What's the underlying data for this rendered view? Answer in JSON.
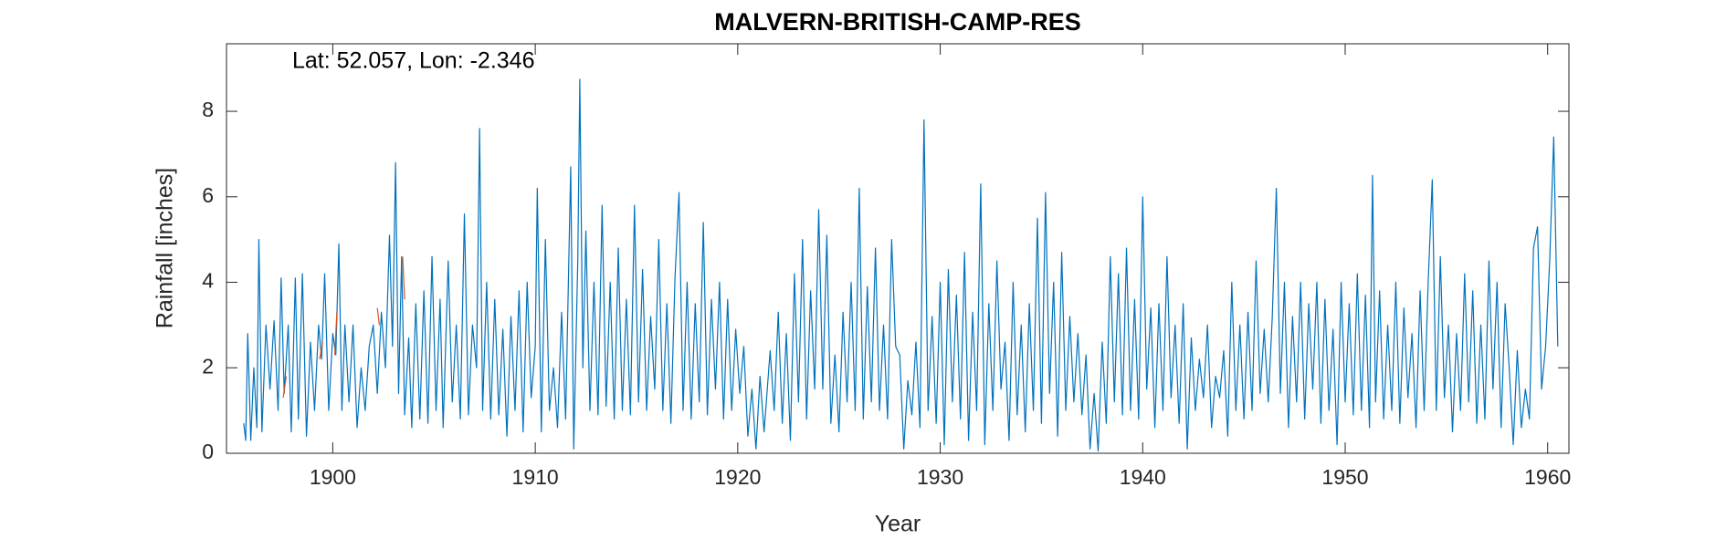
{
  "chart_data": {
    "type": "line",
    "title": "MALVERN-BRITISH-CAMP-RES",
    "annotation": "Lat: 52.057, Lon: -2.346",
    "x_label": "Year",
    "y_label": "Rainfall [inches]",
    "xlim": [
      1894.75,
      1961.05
    ],
    "ylim": [
      0,
      9.58
    ],
    "xticks": [
      1900,
      1910,
      1920,
      1930,
      1940,
      1950,
      1960
    ],
    "yticks": [
      0,
      2,
      4,
      6,
      8
    ],
    "series": [
      {
        "color": "#0072BD",
        "x": [
          1895.6,
          1895.7,
          1895.8,
          1895.95,
          1896.1,
          1896.25,
          1896.35,
          1896.5,
          1896.7,
          1896.9,
          1897.1,
          1897.3,
          1897.45,
          1897.6,
          1897.8,
          1897.95,
          1898.15,
          1898.3,
          1898.5,
          1898.7,
          1898.9,
          1899.1,
          1899.3,
          1899.45,
          1899.6,
          1899.8,
          1900.0,
          1900.15,
          1900.3,
          1900.45,
          1900.6,
          1900.8,
          1901.0,
          1901.2,
          1901.4,
          1901.6,
          1901.8,
          1902.0,
          1902.2,
          1902.4,
          1902.6,
          1902.8,
          1902.95,
          1903.1,
          1903.25,
          1903.4,
          1903.55,
          1903.75,
          1903.9,
          1904.1,
          1904.3,
          1904.5,
          1904.7,
          1904.9,
          1905.1,
          1905.3,
          1905.45,
          1905.7,
          1905.9,
          1906.1,
          1906.3,
          1906.5,
          1906.7,
          1906.9,
          1907.1,
          1907.25,
          1907.4,
          1907.6,
          1907.8,
          1908.0,
          1908.2,
          1908.4,
          1908.6,
          1908.8,
          1909.0,
          1909.2,
          1909.4,
          1909.6,
          1909.8,
          1910.0,
          1910.1,
          1910.3,
          1910.5,
          1910.7,
          1910.9,
          1911.1,
          1911.3,
          1911.5,
          1911.75,
          1911.9,
          1912.1,
          1912.2,
          1912.35,
          1912.5,
          1912.7,
          1912.9,
          1913.1,
          1913.3,
          1913.5,
          1913.7,
          1913.9,
          1914.1,
          1914.3,
          1914.5,
          1914.7,
          1914.9,
          1915.1,
          1915.3,
          1915.5,
          1915.7,
          1915.9,
          1916.1,
          1916.3,
          1916.5,
          1916.7,
          1916.9,
          1917.1,
          1917.3,
          1917.5,
          1917.7,
          1917.9,
          1918.1,
          1918.3,
          1918.5,
          1918.7,
          1918.9,
          1919.1,
          1919.3,
          1919.5,
          1919.7,
          1919.9,
          1920.1,
          1920.3,
          1920.5,
          1920.7,
          1920.9,
          1921.1,
          1921.3,
          1921.6,
          1921.8,
          1922.0,
          1922.2,
          1922.4,
          1922.6,
          1922.8,
          1923.0,
          1923.2,
          1923.4,
          1923.6,
          1923.8,
          1924.0,
          1924.2,
          1924.4,
          1924.6,
          1924.8,
          1925.0,
          1925.2,
          1925.4,
          1925.6,
          1925.8,
          1926.0,
          1926.2,
          1926.4,
          1926.6,
          1926.8,
          1927.0,
          1927.2,
          1927.4,
          1927.6,
          1927.8,
          1928.0,
          1928.2,
          1928.4,
          1928.6,
          1928.8,
          1929.0,
          1929.2,
          1929.4,
          1929.6,
          1929.8,
          1930.0,
          1930.2,
          1930.4,
          1930.6,
          1930.8,
          1931.0,
          1931.2,
          1931.4,
          1931.6,
          1931.8,
          1932.0,
          1932.2,
          1932.4,
          1932.6,
          1932.8,
          1933.0,
          1933.2,
          1933.4,
          1933.6,
          1933.8,
          1934.0,
          1934.2,
          1934.4,
          1934.6,
          1934.8,
          1935.0,
          1935.2,
          1935.4,
          1935.6,
          1935.8,
          1936.0,
          1936.2,
          1936.4,
          1936.6,
          1936.8,
          1937.0,
          1937.2,
          1937.4,
          1937.6,
          1937.8,
          1938.0,
          1938.2,
          1938.4,
          1938.6,
          1938.8,
          1939.0,
          1939.2,
          1939.4,
          1939.6,
          1939.8,
          1940.0,
          1940.2,
          1940.4,
          1940.6,
          1940.8,
          1941.0,
          1941.2,
          1941.4,
          1941.6,
          1941.8,
          1942.0,
          1942.2,
          1942.4,
          1942.6,
          1942.8,
          1943.0,
          1943.2,
          1943.4,
          1943.6,
          1943.8,
          1944.0,
          1944.2,
          1944.4,
          1944.6,
          1944.8,
          1945.0,
          1945.2,
          1945.4,
          1945.6,
          1945.8,
          1946.0,
          1946.2,
          1946.4,
          1946.6,
          1946.8,
          1947.0,
          1947.2,
          1947.4,
          1947.6,
          1947.8,
          1948.0,
          1948.2,
          1948.4,
          1948.6,
          1948.8,
          1949.0,
          1949.2,
          1949.4,
          1949.6,
          1949.8,
          1950.0,
          1950.2,
          1950.4,
          1950.6,
          1950.8,
          1951.0,
          1951.2,
          1951.35,
          1951.5,
          1951.7,
          1951.9,
          1952.1,
          1952.3,
          1952.5,
          1952.7,
          1952.9,
          1953.1,
          1953.3,
          1953.5,
          1953.7,
          1953.9,
          1954.1,
          1954.3,
          1954.5,
          1954.7,
          1954.9,
          1955.1,
          1955.3,
          1955.5,
          1955.7,
          1955.9,
          1956.1,
          1956.3,
          1956.5,
          1956.7,
          1956.9,
          1957.1,
          1957.3,
          1957.5,
          1957.7,
          1957.9,
          1958.1,
          1958.3,
          1958.5,
          1958.7,
          1958.9,
          1959.1,
          1959.3,
          1959.5,
          1959.7,
          1959.9,
          1960.1,
          1960.3,
          1960.5
        ],
        "values": [
          0.7,
          0.3,
          2.8,
          0.3,
          2.0,
          0.6,
          5.0,
          0.5,
          3.0,
          1.5,
          3.1,
          1.0,
          4.1,
          1.4,
          3.0,
          0.5,
          4.1,
          0.8,
          4.2,
          0.4,
          2.6,
          1.0,
          3.0,
          2.2,
          4.2,
          1.0,
          2.8,
          2.3,
          4.9,
          1.0,
          3.0,
          1.2,
          3.0,
          0.6,
          2.0,
          1.0,
          2.5,
          3.0,
          1.4,
          3.3,
          2.0,
          5.1,
          2.5,
          6.8,
          1.4,
          4.6,
          0.9,
          2.7,
          0.6,
          3.5,
          0.8,
          3.8,
          0.7,
          4.6,
          1.0,
          3.6,
          0.6,
          4.5,
          1.2,
          3.0,
          0.8,
          5.6,
          0.9,
          3.0,
          2.0,
          7.6,
          1.0,
          4.0,
          0.8,
          3.6,
          0.9,
          2.9,
          0.4,
          3.2,
          1.0,
          3.8,
          0.5,
          4.0,
          1.3,
          2.5,
          6.2,
          0.5,
          5.0,
          1.0,
          2.0,
          0.6,
          3.3,
          0.8,
          6.7,
          0.1,
          4.5,
          8.75,
          2.0,
          5.2,
          1.0,
          4.0,
          0.9,
          5.8,
          1.1,
          4.0,
          0.8,
          4.8,
          1.0,
          3.6,
          0.9,
          5.8,
          1.2,
          4.3,
          1.0,
          3.2,
          1.5,
          5.0,
          1.0,
          3.5,
          0.7,
          4.1,
          6.1,
          1.0,
          4.0,
          0.8,
          3.5,
          1.2,
          5.4,
          0.9,
          3.6,
          1.5,
          4.0,
          0.8,
          3.6,
          1.0,
          2.9,
          1.4,
          2.5,
          0.4,
          1.5,
          0.1,
          1.8,
          0.5,
          2.4,
          1.0,
          3.3,
          0.7,
          2.8,
          0.3,
          4.2,
          1.2,
          5.0,
          0.8,
          3.8,
          1.5,
          5.7,
          1.5,
          5.1,
          0.7,
          2.3,
          0.5,
          3.3,
          1.2,
          4.0,
          1.0,
          6.2,
          0.8,
          3.9,
          1.2,
          4.8,
          1.0,
          3.0,
          0.8,
          5.0,
          2.5,
          2.3,
          0.1,
          1.7,
          0.9,
          2.6,
          0.6,
          7.8,
          1.0,
          3.2,
          0.7,
          4.0,
          0.2,
          4.3,
          1.2,
          3.7,
          0.8,
          4.7,
          0.3,
          3.3,
          1.0,
          6.3,
          0.2,
          3.5,
          1.0,
          4.5,
          1.5,
          2.6,
          0.3,
          4.0,
          0.9,
          3.0,
          0.5,
          3.5,
          1.0,
          5.5,
          0.7,
          6.1,
          1.4,
          4.0,
          0.4,
          4.7,
          1.0,
          3.2,
          1.2,
          2.8,
          0.9,
          2.3,
          0.1,
          1.4,
          0.05,
          2.6,
          0.7,
          4.6,
          1.2,
          4.2,
          0.9,
          4.8,
          1.0,
          3.6,
          0.8,
          6.0,
          1.5,
          3.4,
          0.6,
          3.5,
          1.0,
          4.6,
          1.3,
          3.0,
          0.7,
          3.5,
          0.1,
          2.7,
          1.0,
          2.2,
          1.3,
          3.0,
          0.6,
          1.8,
          1.3,
          2.4,
          0.4,
          4.0,
          1.0,
          3.0,
          0.8,
          3.3,
          1.0,
          4.5,
          1.4,
          2.9,
          1.2,
          3.2,
          6.2,
          1.4,
          4.0,
          0.6,
          3.2,
          1.2,
          4.0,
          0.8,
          3.5,
          1.5,
          4.0,
          0.7,
          3.6,
          1.0,
          2.9,
          0.2,
          4.0,
          1.2,
          3.5,
          0.9,
          4.2,
          1.0,
          3.7,
          0.6,
          6.5,
          1.2,
          3.8,
          0.8,
          3.0,
          1.0,
          4.0,
          0.7,
          3.4,
          1.3,
          2.8,
          0.6,
          3.8,
          1.0,
          4.0,
          6.4,
          1.0,
          4.6,
          1.3,
          3.0,
          0.5,
          2.8,
          1.0,
          4.2,
          1.2,
          3.8,
          0.7,
          3.0,
          0.8,
          4.5,
          1.5,
          4.0,
          0.6,
          3.5,
          2.0,
          0.2,
          2.4,
          0.6,
          1.5,
          0.8,
          4.8,
          5.3,
          1.5,
          2.5,
          4.5,
          7.4,
          2.5
        ]
      },
      {
        "color": "#D95319",
        "x": [
          1897.55,
          1897.7,
          1897.8,
          1899.35,
          1899.5,
          1899.6,
          1900.1,
          1900.2,
          1900.3,
          1902.2,
          1902.3,
          1902.4,
          1903.45,
          1903.55
        ],
        "values": [
          1.3,
          1.8,
          null,
          2.2,
          2.6,
          null,
          2.3,
          3.3,
          null,
          3.4,
          3.0,
          null,
          4.6,
          3.6
        ]
      }
    ]
  }
}
